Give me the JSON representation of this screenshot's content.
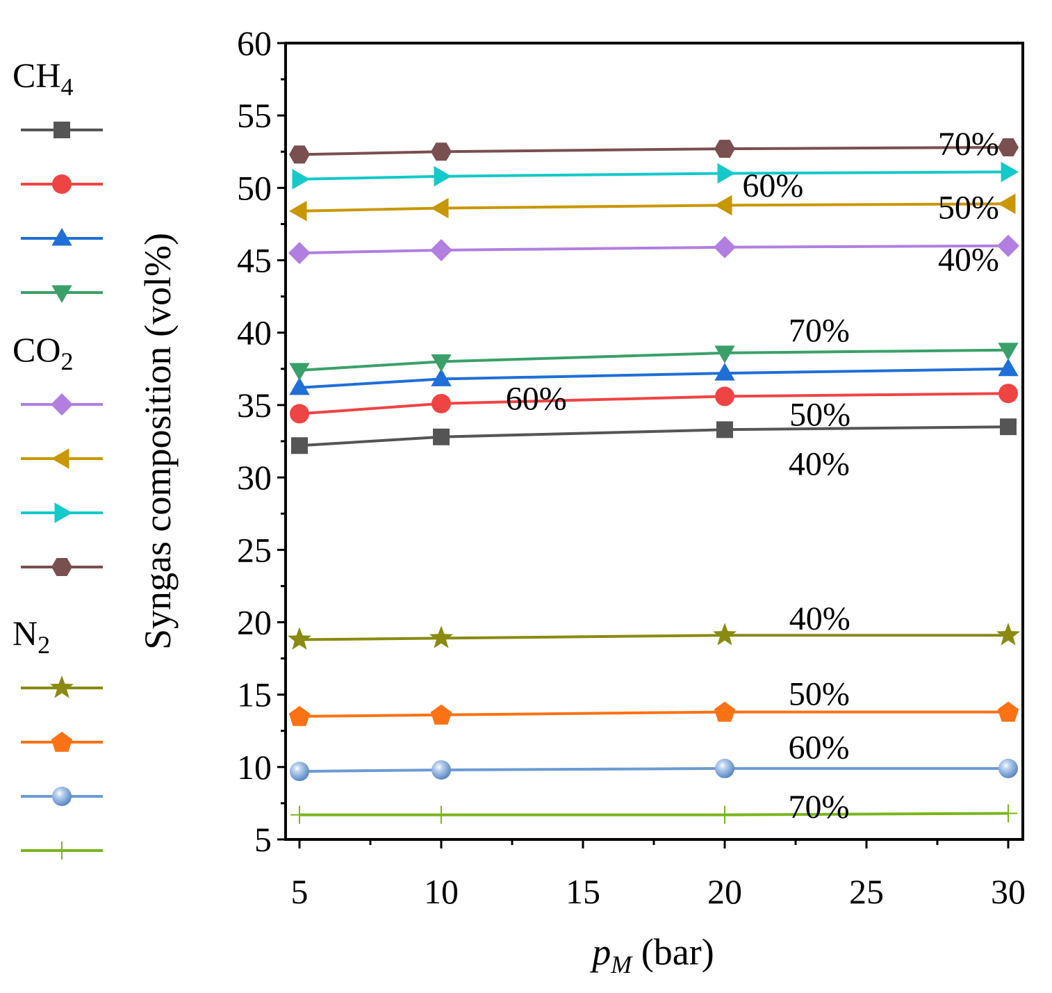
{
  "chart_data": {
    "type": "line",
    "title": "",
    "xlabel_var": "p",
    "xlabel_sub": "M",
    "xlabel_unit": "(bar)",
    "ylabel": "Syngas composition (vol%)",
    "x": [
      5,
      10,
      20,
      30
    ],
    "xlim": [
      4.5,
      30.5
    ],
    "ylim": [
      5,
      60
    ],
    "xticks": [
      "5",
      "10",
      "15",
      "20",
      "25",
      "30"
    ],
    "yticks": [
      "5",
      "10",
      "15",
      "20",
      "25",
      "30",
      "35",
      "40",
      "45",
      "50",
      "55",
      "60"
    ],
    "legend_groups": [
      {
        "label": "CH",
        "sub": "4"
      },
      {
        "label": "CO",
        "sub": "2"
      },
      {
        "label": "N",
        "sub": "2"
      }
    ],
    "series": [
      {
        "group": "CH4",
        "name": "CH4 40%",
        "label": "40%",
        "color": "#555555",
        "marker": "square",
        "values": [
          32.2,
          32.8,
          33.3,
          33.5
        ]
      },
      {
        "group": "CH4",
        "name": "CH4 50%",
        "label": "50%",
        "color": "#ef4444",
        "marker": "circle",
        "values": [
          34.4,
          35.1,
          35.6,
          35.8
        ]
      },
      {
        "group": "CH4",
        "name": "CH4 60%",
        "label": "60%",
        "color": "#1f6fd6",
        "marker": "triangle-up",
        "values": [
          36.2,
          36.8,
          37.2,
          37.5
        ]
      },
      {
        "group": "CH4",
        "name": "CH4 70%",
        "label": "70%",
        "color": "#3aa069",
        "marker": "triangle-down",
        "values": [
          37.4,
          38.0,
          38.6,
          38.8
        ]
      },
      {
        "group": "CO2",
        "name": "CO2 40%",
        "label": "40%",
        "color": "#b07fe0",
        "marker": "diamond",
        "values": [
          45.5,
          45.7,
          45.9,
          46.0
        ]
      },
      {
        "group": "CO2",
        "name": "CO2 50%",
        "label": "50%",
        "color": "#c99700",
        "marker": "triangle-left",
        "values": [
          48.4,
          48.6,
          48.8,
          48.9
        ]
      },
      {
        "group": "CO2",
        "name": "CO2 60%",
        "label": "60%",
        "color": "#14c9c9",
        "marker": "triangle-right",
        "values": [
          50.6,
          50.8,
          51.0,
          51.1
        ]
      },
      {
        "group": "CO2",
        "name": "CO2 70%",
        "label": "70%",
        "color": "#7a4f4f",
        "marker": "hexagon",
        "values": [
          52.3,
          52.5,
          52.7,
          52.8
        ]
      },
      {
        "group": "N2",
        "name": "N2 40%",
        "label": "40%",
        "color": "#8a8a10",
        "marker": "star",
        "values": [
          18.8,
          18.9,
          19.1,
          19.1
        ]
      },
      {
        "group": "N2",
        "name": "N2 50%",
        "label": "50%",
        "color": "#fa7214",
        "marker": "pentagon",
        "values": [
          13.5,
          13.6,
          13.8,
          13.8
        ]
      },
      {
        "group": "N2",
        "name": "N2 60%",
        "label": "60%",
        "color": "#6b9bd2",
        "marker": "sphere",
        "values": [
          9.7,
          9.8,
          9.9,
          9.9
        ]
      },
      {
        "group": "N2",
        "name": "N2 70%",
        "label": "70%",
        "color": "#7ab51d",
        "marker": "plus",
        "values": [
          6.7,
          6.7,
          6.7,
          6.8
        ]
      }
    ]
  }
}
